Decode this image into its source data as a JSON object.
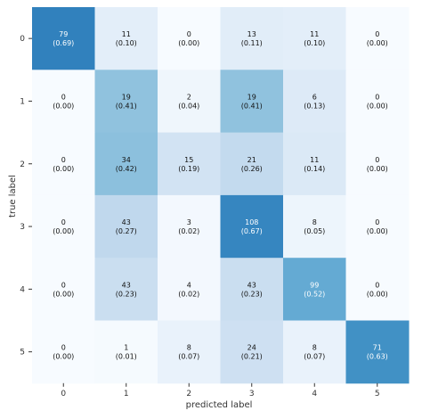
{
  "chart_data": {
    "type": "heatmap",
    "title": "",
    "xlabel": "predicted label",
    "ylabel": "true label",
    "x_ticks": [
      "0",
      "1",
      "2",
      "3",
      "4",
      "5"
    ],
    "y_ticks": [
      "0",
      "1",
      "2",
      "3",
      "4",
      "5"
    ],
    "colormap": "Blues",
    "color_low": "#f7fbff",
    "color_high": "#08306b",
    "grid": false,
    "colorbar": false,
    "counts": [
      [
        79,
        11,
        0,
        13,
        11,
        0
      ],
      [
        0,
        19,
        2,
        19,
        6,
        0
      ],
      [
        0,
        34,
        15,
        21,
        11,
        0
      ],
      [
        0,
        43,
        3,
        108,
        8,
        0
      ],
      [
        0,
        43,
        4,
        43,
        99,
        0
      ],
      [
        0,
        1,
        8,
        24,
        8,
        71
      ]
    ],
    "fractions": [
      [
        "(0.69)",
        "(0.10)",
        "(0.00)",
        "(0.11)",
        "(0.10)",
        "(0.00)"
      ],
      [
        "(0.00)",
        "(0.41)",
        "(0.04)",
        "(0.41)",
        "(0.13)",
        "(0.00)"
      ],
      [
        "(0.00)",
        "(0.42)",
        "(0.19)",
        "(0.26)",
        "(0.14)",
        "(0.00)"
      ],
      [
        "(0.00)",
        "(0.27)",
        "(0.02)",
        "(0.67)",
        "(0.05)",
        "(0.00)"
      ],
      [
        "(0.00)",
        "(0.23)",
        "(0.02)",
        "(0.23)",
        "(0.52)",
        "(0.00)"
      ],
      [
        "(0.00)",
        "(0.01)",
        "(0.07)",
        "(0.21)",
        "(0.07)",
        "(0.63)"
      ]
    ]
  }
}
